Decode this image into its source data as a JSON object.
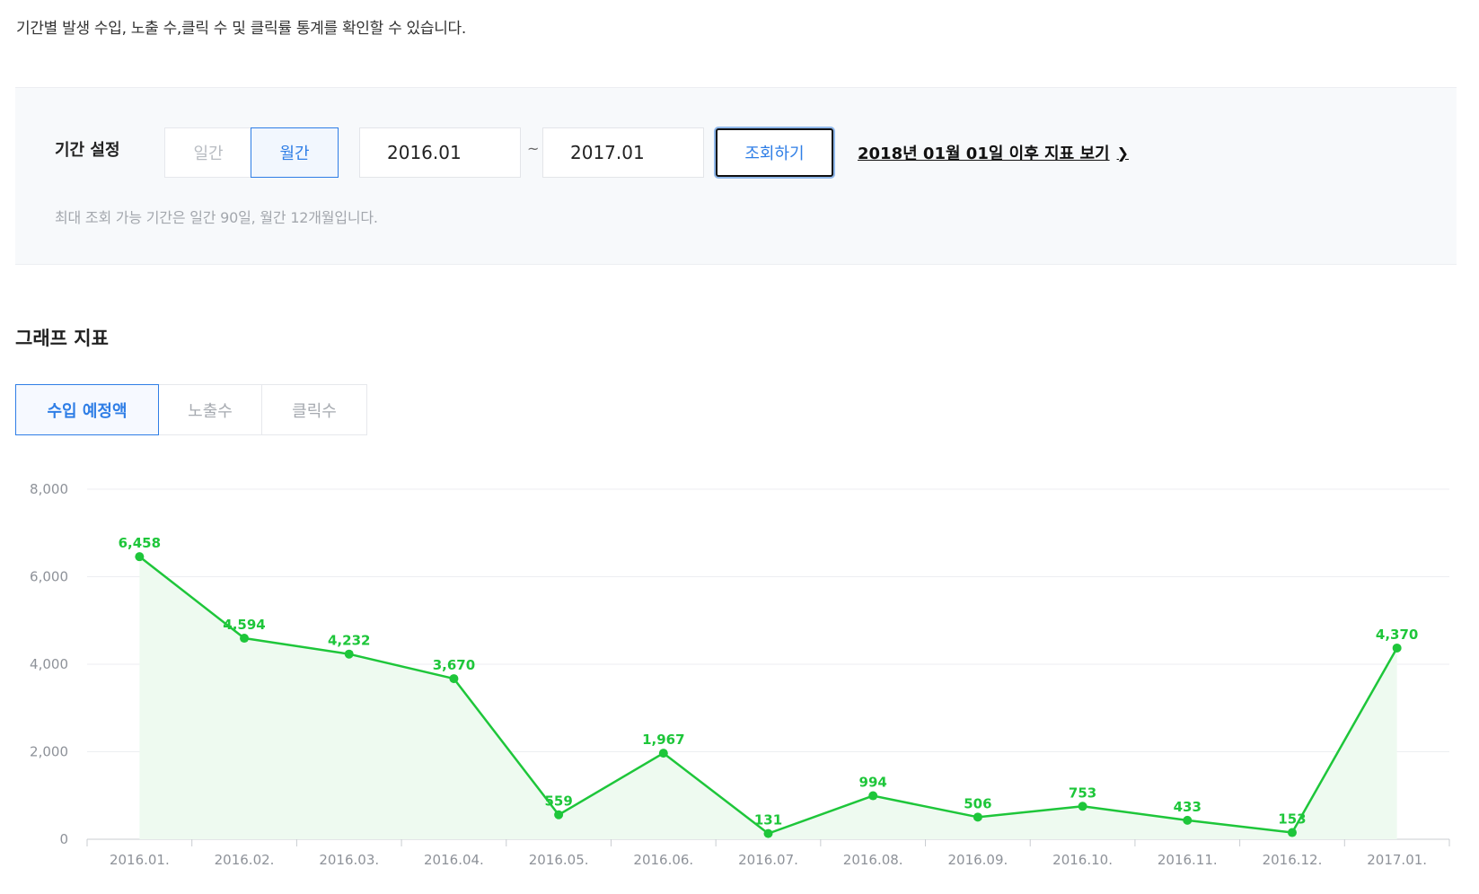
{
  "description": "기간별 발생 수입, 노출 수,클릭 수 및 클릭률 통계를 확인할 수 있습니다.",
  "period": {
    "label": "기간 설정",
    "daily_label": "일간",
    "monthly_label": "월간",
    "selected_mode": "월간",
    "from_value": "2016.01",
    "tilde": "~",
    "to_value": "2017.01",
    "search_label": "조회하기",
    "after_link_label": "2018년 01월 01일 이후 지표 보기",
    "note": "최대 조회 가능 기간은 일간 90일, 월간 12개월입니다."
  },
  "graph": {
    "title": "그래프 지표",
    "tabs": [
      {
        "label": "수입 예정액",
        "active": true
      },
      {
        "label": "노출수",
        "active": false
      },
      {
        "label": "클릭수",
        "active": false
      }
    ]
  },
  "chart_data": {
    "type": "area",
    "categories": [
      "2016.01.",
      "2016.02.",
      "2016.03.",
      "2016.04.",
      "2016.05.",
      "2016.06.",
      "2016.07.",
      "2016.08.",
      "2016.09.",
      "2016.10.",
      "2016.11.",
      "2016.12.",
      "2017.01."
    ],
    "values": [
      6458,
      4594,
      4232,
      3670,
      559,
      1967,
      131,
      994,
      506,
      753,
      433,
      153,
      4370
    ],
    "data_labels": [
      "6,458",
      "4,594",
      "4,232",
      "3,670",
      "559",
      "1,967",
      "131",
      "994",
      "506",
      "753",
      "433",
      "153",
      "4,370"
    ],
    "yticks": [
      "0",
      "2,000",
      "4,000",
      "6,000",
      "8,000"
    ],
    "ylim": [
      0,
      8000
    ],
    "grid": true,
    "line_color": "#1ec63a",
    "fill_color": "#eefaf0"
  },
  "colors": {
    "accent": "#2f7ee6",
    "series": "#1ec63a"
  }
}
